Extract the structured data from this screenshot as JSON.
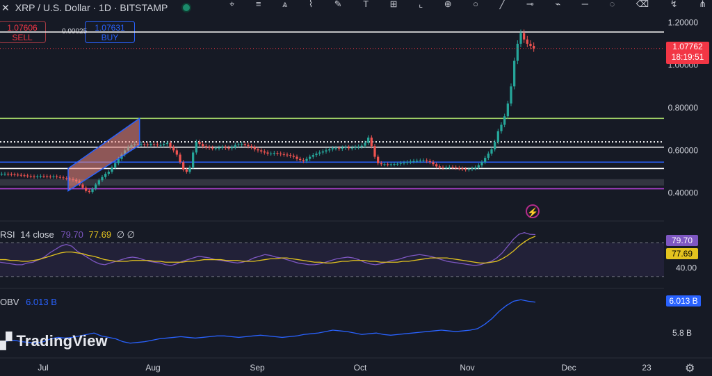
{
  "header": {
    "close_glyph": "✕",
    "symbol": "XRP / U.S. Dollar · 1D · BITSTAMP",
    "status_color": "#1b8a6b"
  },
  "toolbar": {
    "icons": [
      "crosshair-icon",
      "lines-icon",
      "pattern-icon",
      "fib-icon",
      "brush-icon",
      "text-icon",
      "measure-icon",
      "ruler-icon",
      "zoom-icon",
      "ellipse-icon",
      "trend-icon",
      "magnet-icon",
      "path-icon",
      "horizontal-line-icon",
      "circle-icon",
      "trash-icon",
      "zigzag-icon",
      "pitchfork-icon"
    ],
    "glyphs": [
      "⌖",
      "≡",
      "⩓",
      "⌇",
      "✎",
      "T",
      "⊞",
      "⌞",
      "⊕",
      "○",
      "╱",
      "⊸",
      "⌁",
      "─",
      "◌",
      "⌫",
      "↯",
      "⋔"
    ]
  },
  "trade": {
    "sell_price": "1.07606",
    "sell_label": "SELL",
    "spread": "0.00025",
    "buy_price": "1.07631",
    "buy_label": "BUY"
  },
  "last_price": {
    "price": "1.07762",
    "countdown": "18:19:51",
    "color": "#f23645"
  },
  "indicators": {
    "rsi": {
      "label": "RSI",
      "params": "14 close",
      "value": "79.70",
      "ma_value": "77.69",
      "tail": "∅ ∅",
      "line_color": "#7e57c2",
      "ma_color": "#e3c31f"
    },
    "obv": {
      "label": "OBV",
      "value": "6.013 B",
      "line_color": "#2962ff"
    }
  },
  "watermark": "TradingView",
  "chart_data": {
    "type": "candlestick",
    "title": "XRP / U.S. Dollar · 1D · BITSTAMP",
    "x_ticks": [
      "Jul",
      "Aug",
      "Sep",
      "Oct",
      "Nov",
      "Dec",
      "23"
    ],
    "price_axis_ticks": [
      "1.20000",
      "1.00000",
      "0.80000",
      "0.60000",
      "0.40000"
    ],
    "price_axis_range": [
      0.36,
      1.24
    ],
    "price_axis_label_covered": "1.00000",
    "close": [
      0.49,
      0.49,
      0.488,
      0.487,
      0.486,
      0.485,
      0.483,
      0.482,
      0.48,
      0.478,
      0.476,
      0.478,
      0.48,
      0.479,
      0.477,
      0.476,
      0.478,
      0.475,
      0.473,
      0.47,
      0.468,
      0.465,
      0.462,
      0.455,
      0.44,
      0.425,
      0.41,
      0.405,
      0.42,
      0.44,
      0.46,
      0.475,
      0.49,
      0.5,
      0.52,
      0.54,
      0.56,
      0.58,
      0.6,
      0.615,
      0.625,
      0.63,
      0.628,
      0.63,
      0.628,
      0.625,
      0.63,
      0.628,
      0.625,
      0.625,
      0.63,
      0.635,
      0.615,
      0.6,
      0.58,
      0.545,
      0.51,
      0.5,
      0.52,
      0.59,
      0.64,
      0.63,
      0.62,
      0.615,
      0.612,
      0.61,
      0.61,
      0.612,
      0.615,
      0.612,
      0.61,
      0.615,
      0.625,
      0.628,
      0.63,
      0.625,
      0.62,
      0.615,
      0.605,
      0.6,
      0.595,
      0.59,
      0.585,
      0.585,
      0.588,
      0.585,
      0.582,
      0.58,
      0.578,
      0.575,
      0.57,
      0.56,
      0.555,
      0.55,
      0.56,
      0.57,
      0.578,
      0.585,
      0.59,
      0.595,
      0.6,
      0.605,
      0.61,
      0.61,
      0.608,
      0.612,
      0.615,
      0.61,
      0.612,
      0.615,
      0.618,
      0.622,
      0.635,
      0.66,
      0.62,
      0.57,
      0.54,
      0.535,
      0.535,
      0.534,
      0.535,
      0.536,
      0.537,
      0.54,
      0.542,
      0.545,
      0.548,
      0.55,
      0.551,
      0.552,
      0.553,
      0.55,
      0.545,
      0.535,
      0.525,
      0.52,
      0.518,
      0.52,
      0.522,
      0.52,
      0.518,
      0.515,
      0.513,
      0.51,
      0.512,
      0.515,
      0.52,
      0.53,
      0.545,
      0.565,
      0.585,
      0.605,
      0.64,
      0.69,
      0.72,
      0.76,
      0.82,
      0.9,
      1.02,
      1.1,
      1.15,
      1.12,
      1.1,
      1.09,
      1.078
    ],
    "price_levels": [
      {
        "value": 1.155,
        "color": "#e8e8e8",
        "style": "solid"
      },
      {
        "value": 0.75,
        "color": "#9ccc65",
        "style": "solid"
      },
      {
        "value": 0.64,
        "color": "#ffffff",
        "style": "dotted"
      },
      {
        "value": 0.615,
        "color": "#ffffff",
        "style": "solid"
      },
      {
        "value": 0.545,
        "color": "#2962ff",
        "style": "solid"
      },
      {
        "value": 0.515,
        "color": "#ffffff",
        "style": "solid"
      },
      {
        "value": 0.42,
        "color": "#b040d0",
        "style": "solid"
      }
    ],
    "channel_pattern": {
      "color": "#f28b82",
      "from_low": 0.41,
      "from_high": 0.515,
      "to_low": 0.625,
      "to_high": 0.75
    },
    "rsi_axis_ticks": [
      "40.00"
    ],
    "rsi_band_values": [
      30,
      70
    ],
    "rsi": [
      47,
      46,
      45,
      44,
      44,
      46,
      47,
      50,
      53,
      58,
      62,
      66,
      68,
      66,
      60,
      56,
      52,
      48,
      45,
      44,
      46,
      48,
      50,
      52,
      53,
      52,
      50,
      48,
      47,
      46,
      44,
      43,
      45,
      48,
      50,
      52,
      54,
      53,
      52,
      50,
      49,
      48,
      47,
      46,
      47,
      49,
      52,
      54,
      56,
      55,
      53,
      52,
      50,
      48,
      46,
      45,
      44,
      44,
      45,
      47,
      49,
      51,
      52,
      53,
      52,
      50,
      47,
      45,
      44,
      45,
      47,
      49,
      50,
      52,
      54,
      55,
      56,
      55,
      54,
      52,
      50,
      48,
      47,
      46,
      45,
      44,
      43,
      44,
      46,
      48,
      52,
      58,
      66,
      74,
      80,
      82,
      80,
      79.7
    ],
    "rsi_ma": [
      50,
      50,
      49,
      49,
      48,
      48,
      49,
      50,
      52,
      54,
      56,
      58,
      59,
      59,
      58,
      57,
      55,
      54,
      52,
      50,
      49,
      48,
      48,
      48,
      49,
      49,
      49,
      49,
      48,
      48,
      47,
      47,
      47,
      47,
      48,
      48,
      49,
      50,
      50,
      50,
      50,
      49,
      49,
      49,
      48,
      48,
      48,
      49,
      50,
      51,
      51,
      52,
      52,
      51,
      50,
      49,
      48,
      47,
      47,
      46,
      46,
      47,
      48,
      48,
      49,
      49,
      49,
      48,
      48,
      47,
      47,
      47,
      47,
      48,
      48,
      49,
      50,
      51,
      52,
      52,
      52,
      52,
      51,
      50,
      49,
      48,
      47,
      46,
      46,
      47,
      48,
      51,
      55,
      60,
      66,
      71,
      75,
      77.69
    ],
    "obv_axis_ticks": [
      "6.013 B",
      "5.8 B"
    ],
    "obv": [
      5.74,
      5.745,
      5.75,
      5.74,
      5.735,
      5.73,
      5.74,
      5.76,
      5.77,
      5.765,
      5.77,
      5.78,
      5.79,
      5.8,
      5.78,
      5.77,
      5.76,
      5.74,
      5.73,
      5.735,
      5.74,
      5.75,
      5.76,
      5.765,
      5.77,
      5.775,
      5.77,
      5.765,
      5.77,
      5.775,
      5.78,
      5.78,
      5.775,
      5.77,
      5.775,
      5.78,
      5.785,
      5.78,
      5.775,
      5.77,
      5.775,
      5.78,
      5.79,
      5.795,
      5.8,
      5.81,
      5.82,
      5.815,
      5.81,
      5.8,
      5.79,
      5.795,
      5.8,
      5.79,
      5.785,
      5.79,
      5.795,
      5.8,
      5.805,
      5.81,
      5.815,
      5.82,
      5.815,
      5.81,
      5.815,
      5.82,
      5.83,
      5.86,
      5.9,
      5.95,
      5.99,
      6.02,
      6.03,
      6.02,
      6.013
    ]
  }
}
